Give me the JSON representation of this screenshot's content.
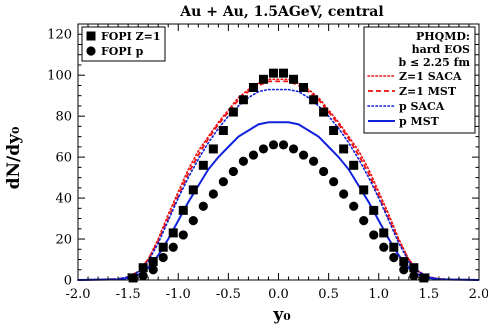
{
  "chart_data": {
    "type": "scatter",
    "title": "Au + Au,  1.5AGeV, central",
    "xlabel": "y₀",
    "ylabel": "dN/dy₀",
    "xlim": [
      -2.0,
      2.0
    ],
    "ylim": [
      0,
      125
    ],
    "x_ticks": [
      "-2.0",
      "-1.5",
      "-1.0",
      "-0.5",
      "0.0",
      "0.5",
      "1.0",
      "1.5",
      "2.0"
    ],
    "y_ticks": [
      "0",
      "20",
      "40",
      "60",
      "80",
      "100",
      "120"
    ],
    "legend_left": {
      "placement": "top-left",
      "entries": [
        "FOPI Z=1",
        "FOPI p"
      ]
    },
    "legend_right": {
      "placement": "top-right",
      "header": [
        "PHQMD:",
        "hard EOS",
        "b ≤ 2.25 fm"
      ],
      "entries": [
        "Z=1 SACA",
        "Z=1 MST",
        "p SACA",
        "p MST"
      ]
    },
    "colors": {
      "red": "#ee1111",
      "blue": "#1122dd",
      "black": "#000000"
    },
    "series": [
      {
        "name": "FOPI Z=1",
        "kind": "markers",
        "marker": "square",
        "color": "#000000",
        "x": [
          -1.45,
          -1.35,
          -1.25,
          -1.15,
          -1.05,
          -0.95,
          -0.85,
          -0.75,
          -0.65,
          -0.55,
          -0.45,
          -0.35,
          -0.25,
          -0.15,
          -0.05,
          0.05,
          0.15,
          0.25,
          0.35,
          0.45,
          0.55,
          0.65,
          0.75,
          0.85,
          0.95,
          1.05,
          1.15,
          1.25,
          1.35,
          1.45
        ],
        "y": [
          1,
          6,
          9,
          16,
          23,
          34,
          44,
          56,
          64,
          73,
          82,
          88,
          94,
          98,
          101,
          101,
          98,
          94,
          88,
          82,
          73,
          64,
          56,
          44,
          34,
          23,
          16,
          9,
          6,
          1
        ]
      },
      {
        "name": "FOPI p",
        "kind": "markers",
        "marker": "circle",
        "color": "#000000",
        "x": [
          -1.35,
          -1.25,
          -1.15,
          -1.05,
          -0.95,
          -0.85,
          -0.75,
          -0.65,
          -0.55,
          -0.45,
          -0.35,
          -0.25,
          -0.15,
          -0.05,
          0.05,
          0.15,
          0.25,
          0.35,
          0.45,
          0.55,
          0.65,
          0.75,
          0.85,
          0.95,
          1.05,
          1.15,
          1.25,
          1.35
        ],
        "y": [
          2,
          5,
          11,
          16,
          22,
          29,
          36,
          42,
          48,
          53,
          58,
          61,
          64,
          66,
          66,
          64,
          61,
          58,
          53,
          48,
          42,
          36,
          29,
          22,
          16,
          11,
          5,
          2
        ]
      },
      {
        "name": "Z=1 SACA",
        "kind": "line",
        "dash": "dotted",
        "color": "#ee1111",
        "x": [
          -2.0,
          -1.6,
          -1.5,
          -1.4,
          -1.3,
          -1.2,
          -1.1,
          -1.0,
          -0.9,
          -0.8,
          -0.7,
          -0.6,
          -0.5,
          -0.4,
          -0.3,
          -0.2,
          -0.1,
          0.0,
          0.1,
          0.2,
          0.3,
          0.4,
          0.5,
          0.6,
          0.7,
          0.8,
          0.9,
          1.0,
          1.1,
          1.2,
          1.3,
          1.4,
          1.5,
          1.6,
          2.0
        ],
        "y": [
          0,
          0.5,
          1.5,
          4,
          10,
          20,
          32,
          43,
          54,
          63,
          70,
          77,
          83,
          89,
          93,
          96,
          98,
          98,
          98,
          96,
          93,
          89,
          83,
          77,
          70,
          63,
          54,
          43,
          32,
          20,
          10,
          4,
          1.5,
          0.5,
          0
        ]
      },
      {
        "name": "Z=1 MST",
        "kind": "line",
        "dash": "dashed",
        "color": "#ee1111",
        "x": [
          -2.0,
          -1.6,
          -1.5,
          -1.4,
          -1.3,
          -1.2,
          -1.1,
          -1.0,
          -0.9,
          -0.8,
          -0.7,
          -0.6,
          -0.5,
          -0.4,
          -0.3,
          -0.2,
          -0.1,
          0.0,
          0.1,
          0.2,
          0.3,
          0.4,
          0.5,
          0.6,
          0.7,
          0.8,
          0.9,
          1.0,
          1.1,
          1.2,
          1.3,
          1.4,
          1.5,
          1.6,
          2.0
        ],
        "y": [
          0,
          0.5,
          1.5,
          4,
          10,
          19,
          30,
          41,
          52,
          61,
          69,
          76,
          82,
          88,
          92,
          95,
          97,
          97,
          97,
          95,
          92,
          88,
          82,
          76,
          69,
          61,
          52,
          41,
          30,
          19,
          10,
          4,
          1.5,
          0.5,
          0
        ]
      },
      {
        "name": "p SACA",
        "kind": "line",
        "dash": "dotted",
        "color": "#1122dd",
        "x": [
          -2.0,
          -1.6,
          -1.5,
          -1.4,
          -1.3,
          -1.2,
          -1.1,
          -1.0,
          -0.9,
          -0.8,
          -0.7,
          -0.6,
          -0.5,
          -0.4,
          -0.3,
          -0.2,
          -0.1,
          0.0,
          0.1,
          0.2,
          0.3,
          0.4,
          0.5,
          0.6,
          0.7,
          0.8,
          0.9,
          1.0,
          1.1,
          1.2,
          1.3,
          1.4,
          1.5,
          1.6,
          2.0
        ],
        "y": [
          0,
          0.5,
          1.5,
          4,
          9,
          18,
          29,
          40,
          50,
          59,
          67,
          74,
          80,
          85,
          89,
          92,
          93,
          93,
          93,
          92,
          89,
          85,
          80,
          74,
          67,
          59,
          50,
          40,
          29,
          18,
          9,
          4,
          1.5,
          0.5,
          0
        ]
      },
      {
        "name": "p MST",
        "kind": "line",
        "dash": "solid",
        "color": "#1122dd",
        "x": [
          -2.0,
          -1.6,
          -1.5,
          -1.4,
          -1.3,
          -1.2,
          -1.1,
          -1.0,
          -0.9,
          -0.8,
          -0.7,
          -0.6,
          -0.5,
          -0.4,
          -0.3,
          -0.2,
          -0.1,
          0.0,
          0.1,
          0.2,
          0.3,
          0.4,
          0.5,
          0.6,
          0.7,
          0.8,
          0.9,
          1.0,
          1.1,
          1.2,
          1.3,
          1.4,
          1.5,
          1.6,
          2.0
        ],
        "y": [
          0,
          0.3,
          1,
          2.5,
          6,
          12,
          20,
          29,
          38,
          46,
          54,
          60,
          65,
          70,
          73,
          76,
          77,
          77,
          77,
          76,
          73,
          70,
          65,
          60,
          54,
          46,
          38,
          29,
          20,
          12,
          6,
          2.5,
          1,
          0.3,
          0
        ]
      }
    ]
  }
}
